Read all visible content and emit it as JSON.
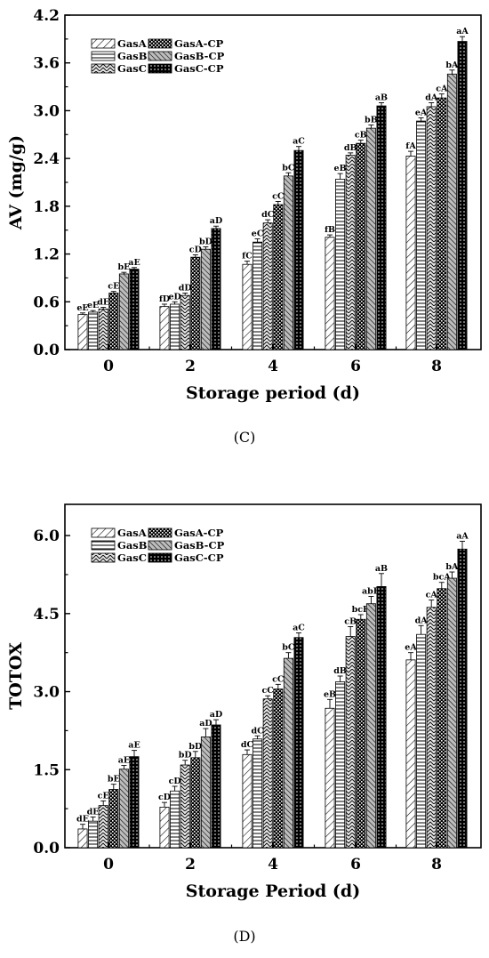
{
  "colors": {
    "axis": "#000000",
    "bar_stroke": "#000000",
    "background": "#ffffff"
  },
  "series_patterns": [
    "diag-light",
    "hlines",
    "waves",
    "checker",
    "diag-dense",
    "dots"
  ],
  "panels": [
    {
      "label": "(C)"
    },
    {
      "label": "(D)"
    }
  ],
  "chart_data": [
    {
      "type": "bar",
      "xlabel": "Storage period (d)",
      "ylabel": "AV (mg/g)",
      "ylim": [
        0,
        4.2
      ],
      "yticks": [
        "0.0",
        "0.6",
        "1.2",
        "1.8",
        "2.4",
        "3.0",
        "3.6",
        "4.2"
      ],
      "categories": [
        "0",
        "2",
        "4",
        "6",
        "8"
      ],
      "legend": "top-left",
      "grid": false,
      "series": [
        {
          "name": "GasA",
          "values": [
            0.44,
            0.54,
            1.07,
            1.41,
            2.43
          ],
          "errors": [
            0.02,
            0.03,
            0.04,
            0.03,
            0.06
          ],
          "labels": [
            "eE",
            "fD",
            "fC",
            "fB",
            "fA"
          ]
        },
        {
          "name": "GasB",
          "values": [
            0.47,
            0.57,
            1.35,
            2.14,
            2.87
          ],
          "errors": [
            0.02,
            0.03,
            0.04,
            0.07,
            0.04
          ],
          "labels": [
            "eE",
            "eD",
            "eC",
            "eB",
            "eA"
          ]
        },
        {
          "name": "GasC",
          "values": [
            0.51,
            0.68,
            1.59,
            2.44,
            3.05
          ],
          "errors": [
            0.02,
            0.03,
            0.04,
            0.03,
            0.05
          ],
          "labels": [
            "dE",
            "dD",
            "dC",
            "dB",
            "dA"
          ]
        },
        {
          "name": "GasA-CP",
          "values": [
            0.71,
            1.16,
            1.82,
            2.59,
            3.16
          ],
          "errors": [
            0.02,
            0.03,
            0.04,
            0.04,
            0.05
          ],
          "labels": [
            "cE",
            "cD",
            "cC",
            "cB",
            "cA"
          ]
        },
        {
          "name": "GasB-CP",
          "values": [
            0.95,
            1.26,
            2.18,
            2.78,
            3.46
          ],
          "errors": [
            0.02,
            0.03,
            0.04,
            0.04,
            0.05
          ],
          "labels": [
            "bE",
            "bD",
            "bC",
            "bB",
            "bA"
          ]
        },
        {
          "name": "GasC-CP",
          "values": [
            1.01,
            1.52,
            2.5,
            3.06,
            3.87
          ],
          "errors": [
            0.02,
            0.03,
            0.05,
            0.04,
            0.06
          ],
          "labels": [
            "aE",
            "aD",
            "aC",
            "aB",
            "aA"
          ]
        }
      ]
    },
    {
      "type": "bar",
      "xlabel": "Storage Period (d)",
      "ylabel": "TOTOX",
      "ylim": [
        0,
        6.6
      ],
      "yticks": [
        "0.0",
        "1.5",
        "3.0",
        "4.5",
        "6.0"
      ],
      "categories": [
        "0",
        "2",
        "4",
        "6",
        "8"
      ],
      "legend": "top-left",
      "grid": false,
      "series": [
        {
          "name": "GasA",
          "values": [
            0.36,
            0.78,
            1.79,
            2.68,
            3.61
          ],
          "errors": [
            0.09,
            0.09,
            0.09,
            0.17,
            0.14
          ],
          "labels": [
            "dE",
            "cD",
            "dC",
            "eB",
            "eA"
          ]
        },
        {
          "name": "GasB",
          "values": [
            0.51,
            1.09,
            2.09,
            3.19,
            4.1
          ],
          "errors": [
            0.08,
            0.09,
            0.06,
            0.11,
            0.17
          ],
          "labels": [
            "dE",
            "cD",
            "dC",
            "dB",
            "dA"
          ]
        },
        {
          "name": "GasC",
          "values": [
            0.81,
            1.59,
            2.86,
            4.06,
            4.62
          ],
          "errors": [
            0.09,
            0.09,
            0.06,
            0.19,
            0.14
          ],
          "labels": [
            "cE",
            "bD",
            "cC",
            "cB",
            "cA"
          ]
        },
        {
          "name": "GasA-CP",
          "values": [
            1.12,
            1.73,
            3.05,
            4.39,
            4.98
          ],
          "errors": [
            0.1,
            0.12,
            0.09,
            0.09,
            0.12
          ],
          "labels": [
            "bE",
            "bD",
            "cC",
            "bcB",
            "bcA"
          ]
        },
        {
          "name": "GasB-CP",
          "values": [
            1.51,
            2.13,
            3.64,
            4.69,
            5.18
          ],
          "errors": [
            0.07,
            0.16,
            0.11,
            0.14,
            0.12
          ],
          "labels": [
            "aE",
            "aD",
            "bC",
            "abB",
            "bA"
          ]
        },
        {
          "name": "GasC-CP",
          "values": [
            1.75,
            2.36,
            4.04,
            5.02,
            5.74
          ],
          "errors": [
            0.12,
            0.1,
            0.09,
            0.25,
            0.15
          ],
          "labels": [
            "aE",
            "aD",
            "aC",
            "aB",
            "aA"
          ]
        }
      ]
    }
  ]
}
